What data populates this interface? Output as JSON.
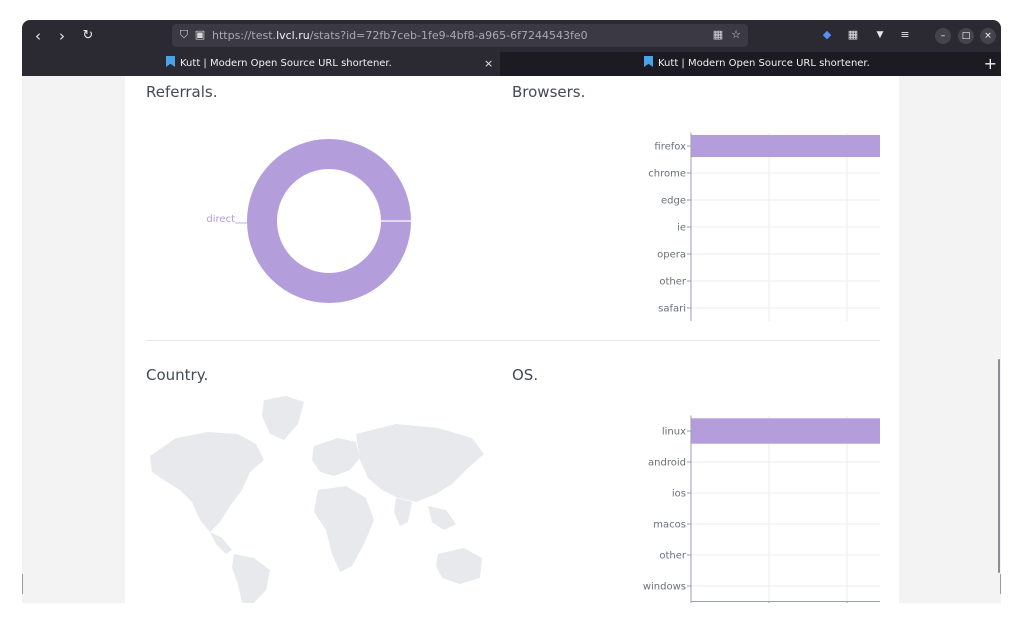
{
  "browser": {
    "url_prefix": "https://test.",
    "url_host": "lvcl.ru",
    "url_path": "/stats?id=72fb7ceb-1fe9-4bf8-a965-6f7244543fe0",
    "tabs": [
      {
        "label": "Kutt | Modern Open Source URL shortener."
      },
      {
        "label": "Kutt | Modern Open Source URL shortener."
      }
    ],
    "new_tab_label": "+"
  },
  "sections": {
    "referrals_title": "Referrals.",
    "browsers_title": "Browsers.",
    "country_title": "Country.",
    "os_title": "OS."
  },
  "chart_data": [
    {
      "type": "pie",
      "title": "Referrals.",
      "categories": [
        "direct"
      ],
      "values": [
        1
      ],
      "color": "#b39ddb"
    },
    {
      "type": "bar",
      "orientation": "horizontal",
      "title": "Browsers.",
      "categories": [
        "firefox",
        "chrome",
        "edge",
        "ie",
        "opera",
        "other",
        "safari"
      ],
      "values": [
        1,
        0,
        0,
        0,
        0,
        0,
        0
      ],
      "xlim": [
        0,
        1
      ],
      "xticks": [
        "0",
        "0.25",
        "0.5",
        "0.75",
        "1"
      ],
      "grid": true,
      "color": "#b39ddb"
    },
    {
      "type": "bar",
      "orientation": "horizontal",
      "title": "OS.",
      "categories": [
        "linux",
        "android",
        "ios",
        "macos",
        "other",
        "windows"
      ],
      "values": [
        1,
        0,
        0,
        0,
        0,
        0
      ],
      "xlim": [
        0,
        1
      ],
      "xticks": [
        "0",
        "0.25",
        "0.5",
        "0.75",
        "1"
      ],
      "grid": true,
      "color": "#b39ddb"
    }
  ]
}
